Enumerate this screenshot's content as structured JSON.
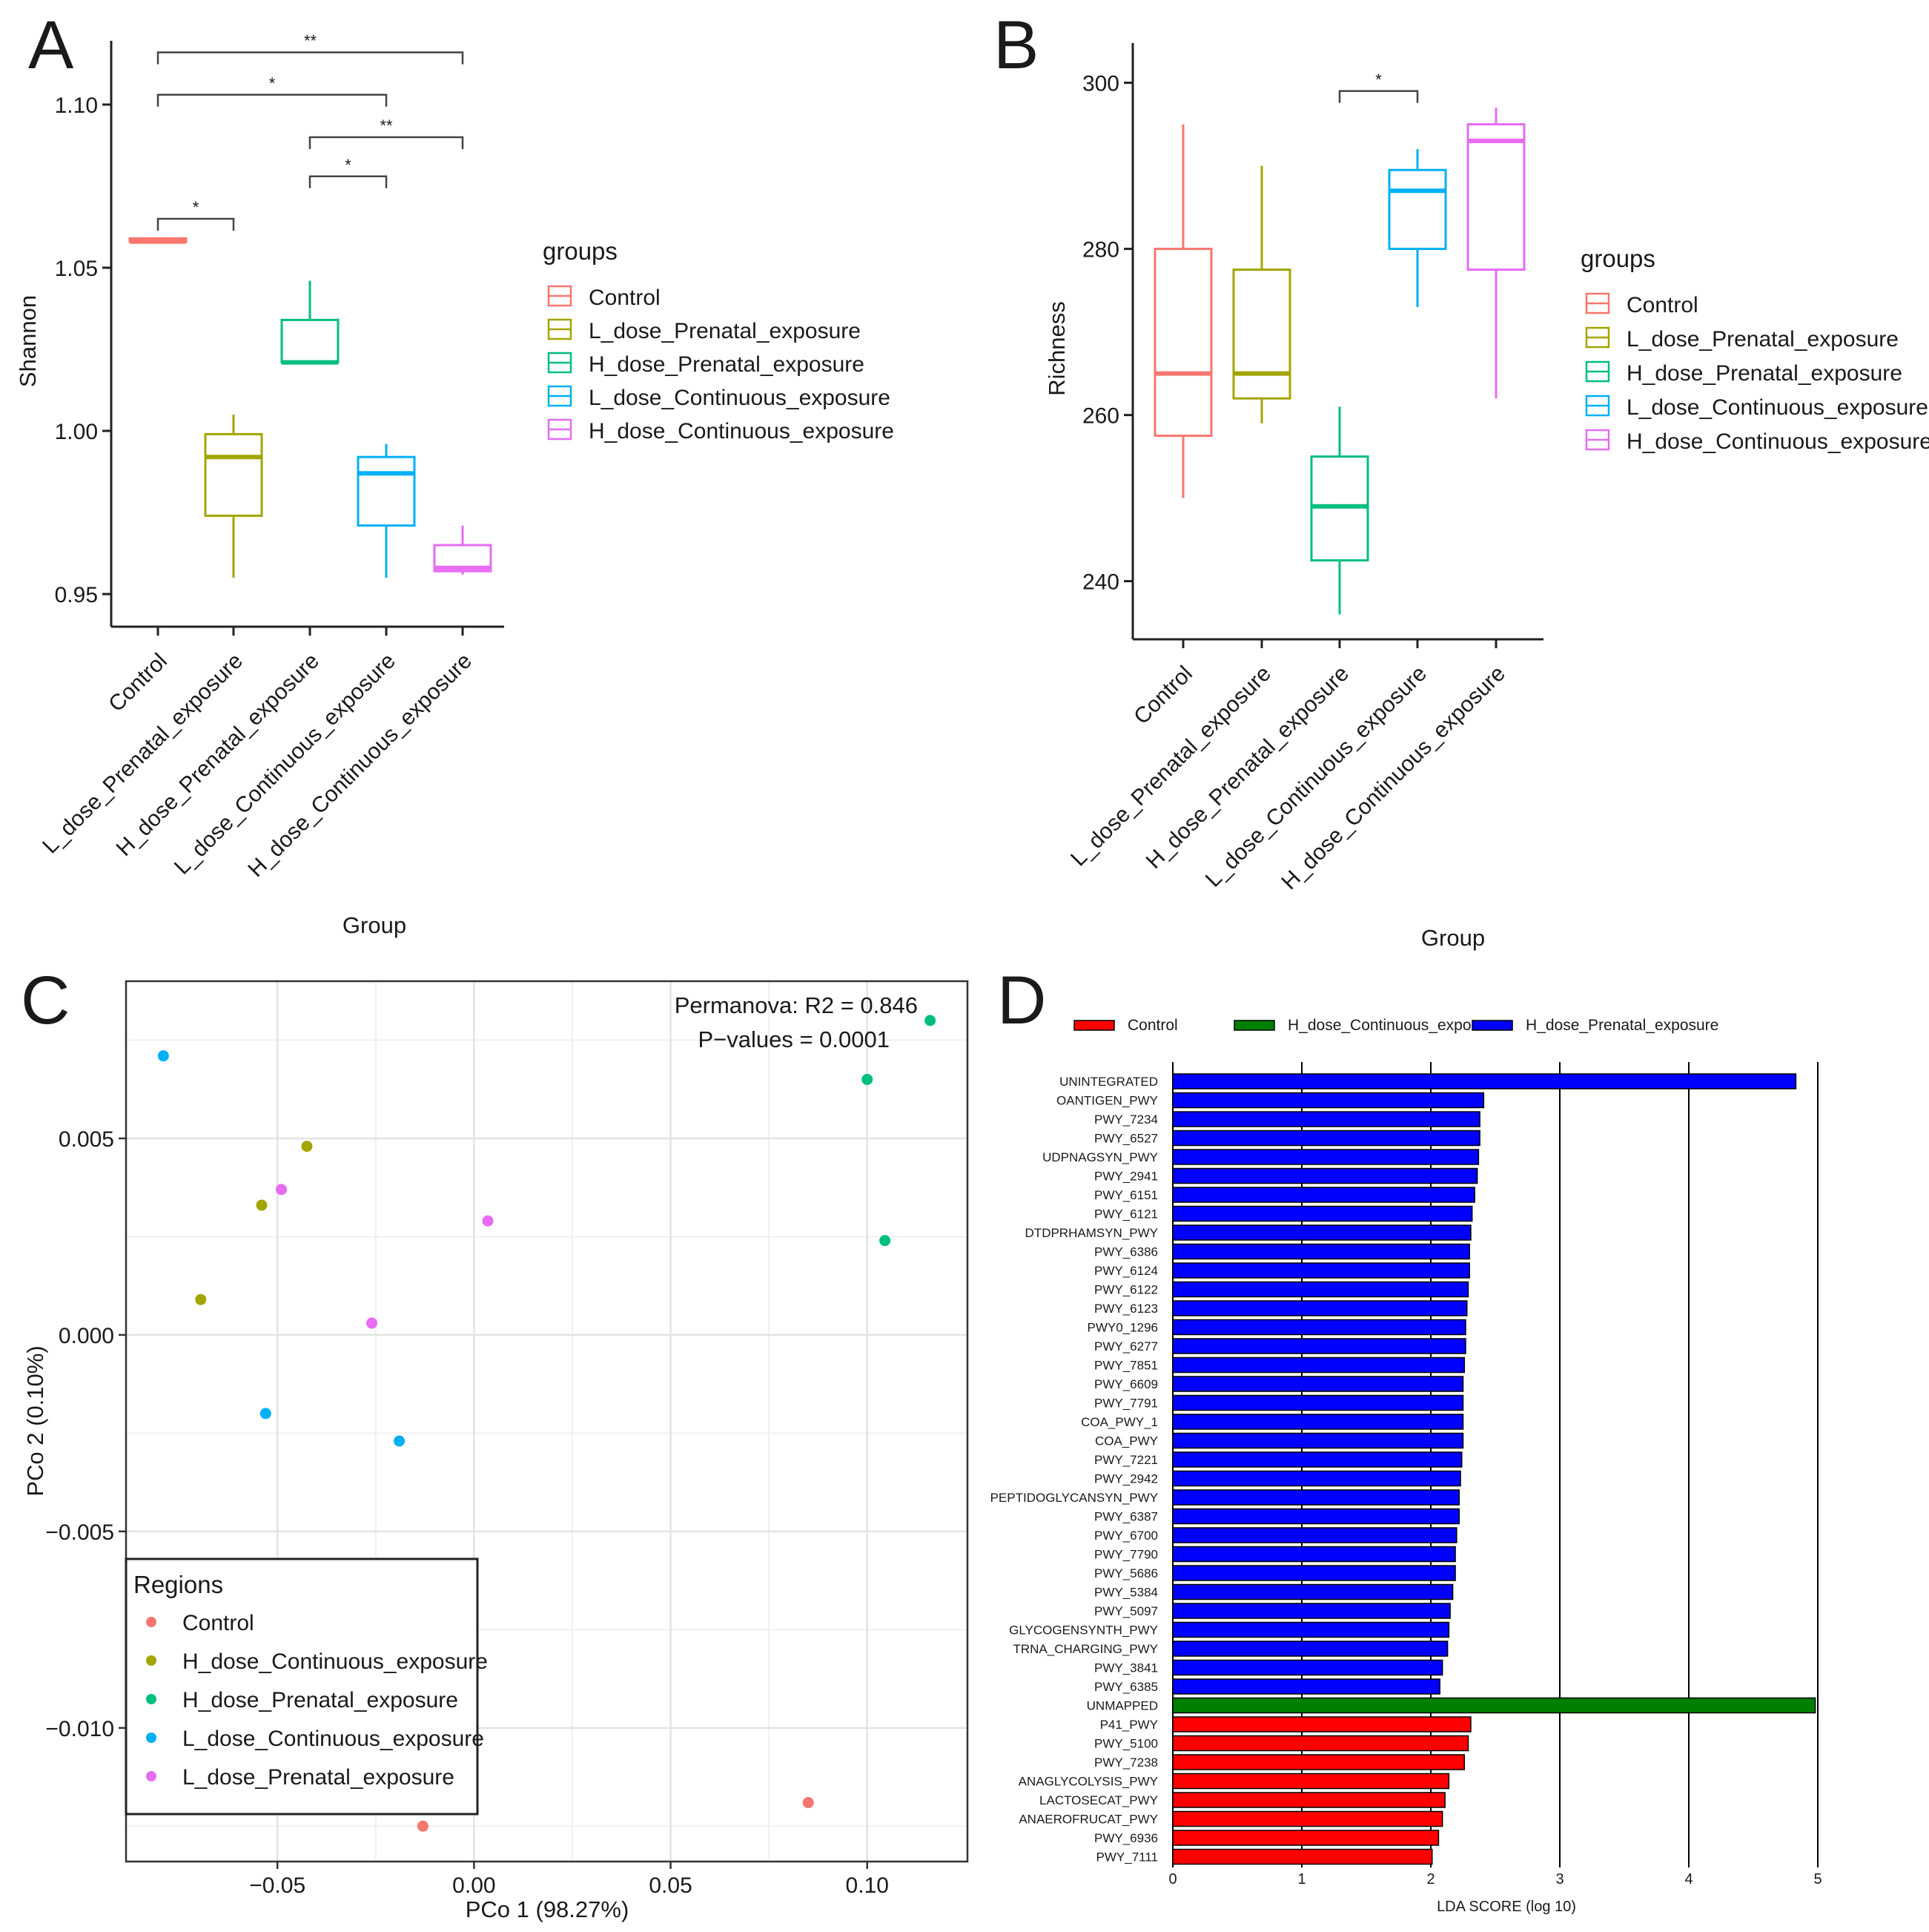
{
  "panels": {
    "A": {
      "label": "A"
    },
    "B": {
      "label": "B"
    },
    "C": {
      "label": "C"
    },
    "D": {
      "label": "D"
    }
  },
  "chart_data": [
    {
      "id": "A",
      "type": "box",
      "xlabel": "Group",
      "ylabel": "Shannon",
      "ylim": [
        0.94,
        1.115
      ],
      "yticks": [
        0.95,
        1.0,
        1.05,
        1.1
      ],
      "ytick_labels": [
        "0.95",
        "1.00",
        "1.05",
        "1.10"
      ],
      "categories": [
        "Control",
        "L_dose_Prenatal_exposure",
        "H_dose_Prenatal_exposure",
        "L_dose_Continuous_exposure",
        "H_dose_Continuous_exposure"
      ],
      "colors": [
        "#F8766D",
        "#A3A500",
        "#00BF7D",
        "#00B0F6",
        "#E76BF3"
      ],
      "boxes": [
        {
          "min": 1.058,
          "q1": 1.058,
          "median": 1.058,
          "q3": 1.059,
          "max": 1.059
        },
        {
          "min": 0.955,
          "q1": 0.974,
          "median": 0.992,
          "q3": 0.999,
          "max": 1.005
        },
        {
          "min": 1.021,
          "q1": 1.021,
          "median": 1.021,
          "q3": 1.034,
          "max": 1.046
        },
        {
          "min": 0.955,
          "q1": 0.971,
          "median": 0.987,
          "q3": 0.992,
          "max": 0.996
        },
        {
          "min": 0.956,
          "q1": 0.957,
          "median": 0.958,
          "q3": 0.965,
          "max": 0.971
        }
      ],
      "brackets": [
        {
          "from": 0,
          "to": 1,
          "y": 1.065,
          "label": "*"
        },
        {
          "from": 2,
          "to": 3,
          "y": 1.078,
          "label": "*"
        },
        {
          "from": 2,
          "to": 4,
          "y": 1.09,
          "label": "**"
        },
        {
          "from": 0,
          "to": 3,
          "y": 1.103,
          "label": "*"
        },
        {
          "from": 0,
          "to": 4,
          "y": 1.116,
          "label": "**"
        }
      ],
      "legend_title": "groups"
    },
    {
      "id": "B",
      "type": "box",
      "xlabel": "Group",
      "ylabel": "Richness",
      "ylim": [
        233,
        303
      ],
      "yticks": [
        240,
        260,
        280,
        300
      ],
      "ytick_labels": [
        "240",
        "260",
        "280",
        "300"
      ],
      "categories": [
        "Control",
        "L_dose_Prenatal_exposure",
        "H_dose_Prenatal_exposure",
        "L_dose_Continuous_exposure",
        "H_dose_Continuous_exposure"
      ],
      "colors": [
        "#F8766D",
        "#A3A500",
        "#00BF7D",
        "#00B0F6",
        "#E76BF3"
      ],
      "boxes": [
        {
          "min": 250,
          "q1": 257.5,
          "median": 265,
          "q3": 280,
          "max": 295
        },
        {
          "min": 259,
          "q1": 262,
          "median": 265,
          "q3": 277.5,
          "max": 290
        },
        {
          "min": 236,
          "q1": 242.5,
          "median": 249,
          "q3": 255,
          "max": 261
        },
        {
          "min": 273,
          "q1": 280,
          "median": 287,
          "q3": 289.5,
          "max": 292
        },
        {
          "min": 262,
          "q1": 277.5,
          "median": 293,
          "q3": 295,
          "max": 297
        }
      ],
      "brackets": [
        {
          "from": 2,
          "to": 3,
          "y": 299,
          "label": "*"
        }
      ],
      "legend_title": "groups"
    },
    {
      "id": "C",
      "type": "scatter",
      "xlabel": "PCo 1 (98.27%)",
      "ylabel": "PCo 2 (0.10%)",
      "xlim": [
        -0.0885,
        0.1255
      ],
      "ylim": [
        -0.0134,
        0.009
      ],
      "xticks": [
        -0.05,
        0.0,
        0.05,
        0.1
      ],
      "xtick_labels": [
        "−0.05",
        "0.00",
        "0.05",
        "0.10"
      ],
      "yticks": [
        -0.01,
        -0.005,
        0.0,
        0.005
      ],
      "ytick_labels": [
        "−0.010",
        "−0.005",
        "0.000",
        "0.005"
      ],
      "annotation": [
        "Permanova: R2 = 0.846",
        "P−values = 0.0001"
      ],
      "legend_title": "Regions",
      "series": [
        {
          "name": "Control",
          "color": "#F8766D",
          "points": [
            [
              -0.013,
              -0.0125
            ],
            [
              0.085,
              -0.0119
            ]
          ]
        },
        {
          "name": "H_dose_Continuous_exposure",
          "color": "#A3A500",
          "points": [
            [
              -0.0425,
              0.0048
            ],
            [
              -0.054,
              0.0033
            ],
            [
              -0.0695,
              0.0009
            ]
          ]
        },
        {
          "name": "H_dose_Prenatal_exposure",
          "color": "#00BF7D",
          "points": [
            [
              0.116,
              0.008
            ],
            [
              0.1,
              0.0065
            ],
            [
              0.1045,
              0.0024
            ]
          ]
        },
        {
          "name": "L_dose_Continuous_exposure",
          "color": "#00B0F6",
          "points": [
            [
              -0.079,
              0.0071
            ],
            [
              -0.053,
              -0.002
            ],
            [
              -0.019,
              -0.0027
            ]
          ]
        },
        {
          "name": "L_dose_Prenatal_exposure",
          "color": "#E76BF3",
          "points": [
            [
              -0.049,
              0.0037
            ],
            [
              0.0035,
              0.0029
            ],
            [
              -0.026,
              0.0003
            ]
          ]
        }
      ]
    },
    {
      "id": "D",
      "type": "bar",
      "orientation": "horizontal",
      "xlabel": "LDA SCORE (log 10)",
      "xlim": [
        0,
        5
      ],
      "xticks": [
        0,
        1,
        2,
        3,
        4,
        5
      ],
      "xtick_labels": [
        "0",
        "1",
        "2",
        "3",
        "4",
        "5"
      ],
      "legend": [
        {
          "name": "Control",
          "color": "#ff0000"
        },
        {
          "name": "H_dose_Continuous_exposure",
          "color": "#008000"
        },
        {
          "name": "H_dose_Prenatal_exposure",
          "color": "#0000ff"
        }
      ],
      "bars": [
        {
          "label": "UNINTEGRATED",
          "value": 4.83,
          "group": "H_dose_Prenatal_exposure"
        },
        {
          "label": "OANTIGEN_PWY",
          "value": 2.41,
          "group": "H_dose_Prenatal_exposure"
        },
        {
          "label": "PWY_7234",
          "value": 2.38,
          "group": "H_dose_Prenatal_exposure"
        },
        {
          "label": "PWY_6527",
          "value": 2.38,
          "group": "H_dose_Prenatal_exposure"
        },
        {
          "label": "UDPNAGSYN_PWY",
          "value": 2.37,
          "group": "H_dose_Prenatal_exposure"
        },
        {
          "label": "PWY_2941",
          "value": 2.36,
          "group": "H_dose_Prenatal_exposure"
        },
        {
          "label": "PWY_6151",
          "value": 2.34,
          "group": "H_dose_Prenatal_exposure"
        },
        {
          "label": "PWY_6121",
          "value": 2.32,
          "group": "H_dose_Prenatal_exposure"
        },
        {
          "label": "DTDPRHAMSYN_PWY",
          "value": 2.31,
          "group": "H_dose_Prenatal_exposure"
        },
        {
          "label": "PWY_6386",
          "value": 2.3,
          "group": "H_dose_Prenatal_exposure"
        },
        {
          "label": "PWY_6124",
          "value": 2.3,
          "group": "H_dose_Prenatal_exposure"
        },
        {
          "label": "PWY_6122",
          "value": 2.29,
          "group": "H_dose_Prenatal_exposure"
        },
        {
          "label": "PWY_6123",
          "value": 2.28,
          "group": "H_dose_Prenatal_exposure"
        },
        {
          "label": "PWY0_1296",
          "value": 2.27,
          "group": "H_dose_Prenatal_exposure"
        },
        {
          "label": "PWY_6277",
          "value": 2.27,
          "group": "H_dose_Prenatal_exposure"
        },
        {
          "label": "PWY_7851",
          "value": 2.26,
          "group": "H_dose_Prenatal_exposure"
        },
        {
          "label": "PWY_6609",
          "value": 2.25,
          "group": "H_dose_Prenatal_exposure"
        },
        {
          "label": "PWY_7791",
          "value": 2.25,
          "group": "H_dose_Prenatal_exposure"
        },
        {
          "label": "COA_PWY_1",
          "value": 2.25,
          "group": "H_dose_Prenatal_exposure"
        },
        {
          "label": "COA_PWY",
          "value": 2.25,
          "group": "H_dose_Prenatal_exposure"
        },
        {
          "label": "PWY_7221",
          "value": 2.24,
          "group": "H_dose_Prenatal_exposure"
        },
        {
          "label": "PWY_2942",
          "value": 2.23,
          "group": "H_dose_Prenatal_exposure"
        },
        {
          "label": "PEPTIDOGLYCANSYN_PWY",
          "value": 2.22,
          "group": "H_dose_Prenatal_exposure"
        },
        {
          "label": "PWY_6387",
          "value": 2.22,
          "group": "H_dose_Prenatal_exposure"
        },
        {
          "label": "PWY_6700",
          "value": 2.2,
          "group": "H_dose_Prenatal_exposure"
        },
        {
          "label": "PWY_7790",
          "value": 2.19,
          "group": "H_dose_Prenatal_exposure"
        },
        {
          "label": "PWY_5686",
          "value": 2.19,
          "group": "H_dose_Prenatal_exposure"
        },
        {
          "label": "PWY_5384",
          "value": 2.17,
          "group": "H_dose_Prenatal_exposure"
        },
        {
          "label": "PWY_5097",
          "value": 2.15,
          "group": "H_dose_Prenatal_exposure"
        },
        {
          "label": "GLYCOGENSYNTH_PWY",
          "value": 2.14,
          "group": "H_dose_Prenatal_exposure"
        },
        {
          "label": "TRNA_CHARGING_PWY",
          "value": 2.13,
          "group": "H_dose_Prenatal_exposure"
        },
        {
          "label": "PWY_3841",
          "value": 2.09,
          "group": "H_dose_Prenatal_exposure"
        },
        {
          "label": "PWY_6385",
          "value": 2.07,
          "group": "H_dose_Prenatal_exposure"
        },
        {
          "label": "UNMAPPED",
          "value": 4.98,
          "group": "H_dose_Continuous_exposure"
        },
        {
          "label": "P41_PWY",
          "value": 2.31,
          "group": "Control"
        },
        {
          "label": "PWY_5100",
          "value": 2.29,
          "group": "Control"
        },
        {
          "label": "PWY_7238",
          "value": 2.26,
          "group": "Control"
        },
        {
          "label": "ANAGLYCOLYSIS_PWY",
          "value": 2.14,
          "group": "Control"
        },
        {
          "label": "LACTOSECAT_PWY",
          "value": 2.11,
          "group": "Control"
        },
        {
          "label": "ANAEROFRUCAT_PWY",
          "value": 2.09,
          "group": "Control"
        },
        {
          "label": "PWY_6936",
          "value": 2.06,
          "group": "Control"
        },
        {
          "label": "PWY_7111",
          "value": 2.01,
          "group": "Control"
        }
      ]
    }
  ]
}
